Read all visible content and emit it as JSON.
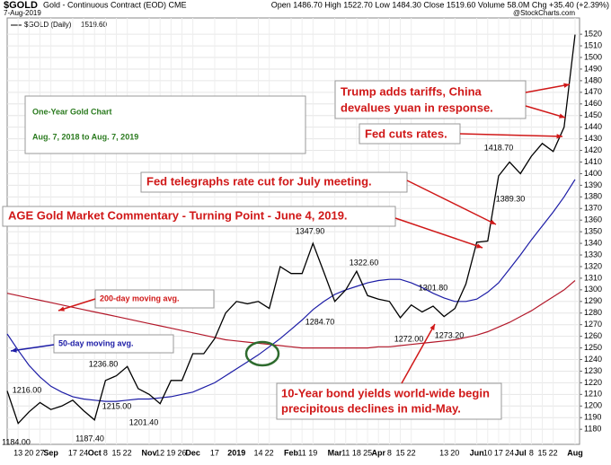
{
  "header": {
    "symbol": "$GOLD",
    "description": "Gold - Continuous Contract (EOD) CME",
    "date": "7-Aug-2019",
    "quote": "Open 1486.70  High 1522.70  Low 1484.30  Close 1519.60  Volume 58.0M  Chg +35.40 (+2.39%)",
    "legend_value": "1519.60",
    "credit": "@StockCharts.com"
  },
  "chart_data": {
    "type": "line",
    "categories": [
      null,
      "13",
      "20",
      "27",
      "Sep",
      null,
      "17",
      "24",
      "Oct",
      "8",
      "15",
      "22",
      null,
      "Nov",
      "12",
      "19",
      "26",
      "Dec",
      null,
      "17",
      null,
      "2019",
      null,
      "14",
      "22",
      null,
      "Feb",
      "11",
      "19",
      null,
      "Mar",
      "11",
      "18",
      "25",
      "Apr",
      "8",
      "15",
      "22",
      null,
      null,
      "13",
      "20",
      null,
      "Jun",
      "10",
      "17",
      "24",
      "Jul",
      "8",
      "15",
      "22",
      null,
      "Aug"
    ],
    "series": [
      {
        "name": "$GOLD (Daily)",
        "color": "#000000",
        "values": [
          1213,
          1185,
          1195,
          1203,
          1197,
          1200,
          1205,
          1196,
          1188,
          1222,
          1226,
          1234,
          1215,
          1210,
          1202,
          1222,
          1222,
          1245,
          1245,
          1258,
          1280,
          1290,
          1288,
          1290,
          1284,
          1320,
          1314,
          1314,
          1340,
          1315,
          1290,
          1300,
          1316,
          1295,
          1292,
          1290,
          1276,
          1287,
          1281,
          1286,
          1277,
          1284,
          1305,
          1341,
          1342,
          1398,
          1410,
          1400,
          1415,
          1426,
          1419,
          1440,
          1519.6
        ]
      },
      {
        "name": "50-day moving avg.",
        "color": "#1c1ca6",
        "values": [
          1262,
          1248,
          1235,
          1225,
          1217,
          1212,
          1208,
          1206,
          1205,
          1204,
          1204,
          1205,
          1206,
          1206,
          1207,
          1208,
          1210,
          1212,
          1216,
          1220,
          1226,
          1232,
          1238,
          1244,
          1251,
          1258,
          1266,
          1274,
          1283,
          1290,
          1296,
          1300,
          1303,
          1306,
          1308,
          1309,
          1309,
          1306,
          1302,
          1297,
          1293,
          1290,
          1290,
          1292,
          1298,
          1306,
          1318,
          1330,
          1343,
          1355,
          1367,
          1380,
          1395
        ]
      },
      {
        "name": "200-day moving avg.",
        "color": "#b3182a",
        "values": [
          1297,
          1295,
          1293,
          1291,
          1289,
          1287,
          1285,
          1283,
          1281,
          1279,
          1277,
          1275,
          1273,
          1271,
          1269,
          1267,
          1265,
          1263,
          1261,
          1259,
          1257,
          1256,
          1255,
          1254,
          1253,
          1252,
          1251,
          1250,
          1250,
          1250,
          1250,
          1250,
          1250,
          1250,
          1251,
          1251,
          1252,
          1253,
          1254,
          1255,
          1256,
          1257,
          1259,
          1261,
          1264,
          1268,
          1272,
          1277,
          1282,
          1288,
          1294,
          1300,
          1308
        ]
      }
    ],
    "ylim": [
      1167,
      1534
    ],
    "yticks": [
      1180,
      1190,
      1200,
      1210,
      1220,
      1230,
      1240,
      1250,
      1260,
      1270,
      1280,
      1290,
      1300,
      1310,
      1320,
      1330,
      1340,
      1350,
      1360,
      1370,
      1380,
      1390,
      1400,
      1410,
      1420,
      1430,
      1440,
      1450,
      1460,
      1470,
      1480,
      1490,
      1500,
      1510,
      1520
    ],
    "grid": true,
    "price_labels": [
      "1216.00",
      "1184.00",
      "1187.40",
      "1236.80",
      "1215.00",
      "1201.40",
      "1347.90",
      "1284.70",
      "1322.60",
      "1301.80",
      "1272.00",
      "1273.20",
      "1418.70",
      "1389.30"
    ],
    "title": [
      "One-Year Gold Chart",
      "Aug. 7, 2018 to Aug. 7, 2019"
    ],
    "annotations": [
      "Trump adds tariffs, China",
      "devalues yuan in response.",
      "Fed cuts rates.",
      "Fed telegraphs rate cut for July meeting.",
      "AGE Gold Market Commentary - Turning Point - June 4, 2019.",
      "10-Year bond yields world-wide begin",
      "precipitous declines in mid-May."
    ]
  }
}
